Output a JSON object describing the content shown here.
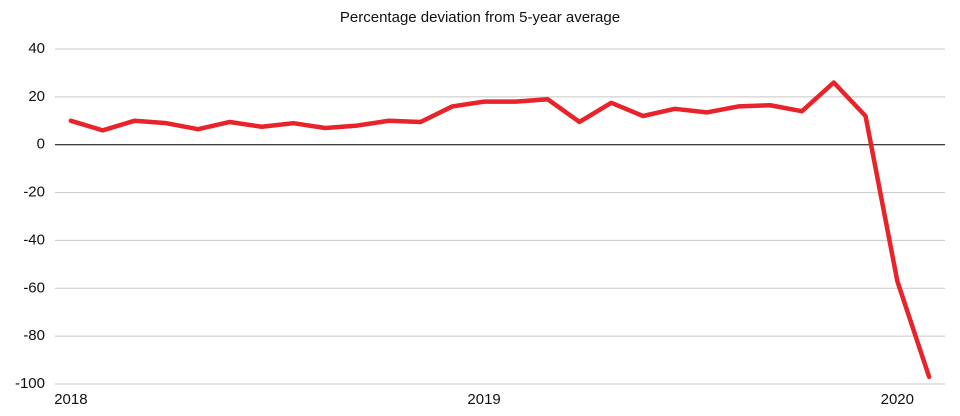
{
  "chart_data": {
    "type": "line",
    "title": "Percentage deviation from 5-year average",
    "x": [
      0,
      1,
      2,
      3,
      4,
      5,
      6,
      7,
      8,
      9,
      10,
      11,
      12,
      13,
      14,
      15,
      16,
      17,
      18,
      19,
      20,
      21,
      22,
      23,
      24,
      25,
      26,
      27
    ],
    "series": [
      {
        "color": "#e8232a",
        "values": [
          10,
          6,
          10,
          9,
          6.5,
          9.5,
          7.5,
          9,
          7,
          8,
          10,
          9.5,
          16,
          18,
          18,
          19,
          9.5,
          17.5,
          12,
          15,
          13.5,
          16,
          16.5,
          14,
          26,
          12,
          -57,
          -97
        ]
      }
    ],
    "xlim": [
      -0.5,
      27.5
    ],
    "xticks": [
      {
        "value": 0,
        "label": "2018"
      },
      {
        "value": 13,
        "label": "2019"
      },
      {
        "value": 26,
        "label": "2020"
      }
    ],
    "ylim": [
      -100,
      40
    ],
    "yticks": [
      -100,
      -80,
      -60,
      -40,
      -20,
      0,
      20,
      40
    ],
    "grid": true
  }
}
